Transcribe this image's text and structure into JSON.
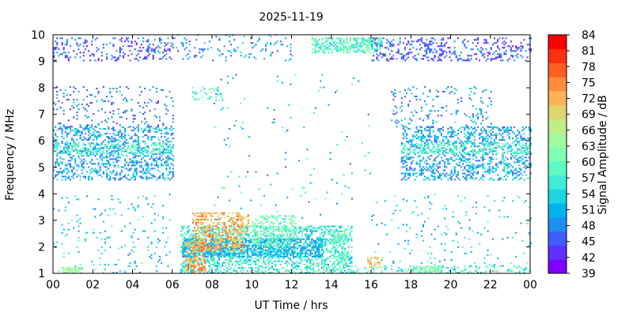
{
  "chart_data": {
    "type": "heatmap",
    "title": "2025-11-19",
    "xlabel": "UT Time / hrs",
    "ylabel": "Frequency / MHz",
    "colorbar_label": "Signal Amplitude / dB",
    "xlim": [
      0,
      24
    ],
    "ylim": [
      1,
      10
    ],
    "x_ticks": [
      "00",
      "02",
      "04",
      "06",
      "08",
      "10",
      "12",
      "14",
      "16",
      "18",
      "20",
      "22",
      "00"
    ],
    "y_ticks": [
      "1",
      "2",
      "3",
      "4",
      "5",
      "6",
      "7",
      "8",
      "9",
      "10"
    ],
    "colorbar_ticks": [
      "39",
      "42",
      "45",
      "48",
      "51",
      "54",
      "57",
      "60",
      "63",
      "66",
      "69",
      "72",
      "75",
      "78",
      "81",
      "84"
    ],
    "colorbar_range": [
      39,
      84
    ],
    "colorbar_colors": [
      "#7f00ff",
      "#5f30fe",
      "#3f5efb",
      "#1f8ef1",
      "#00b4eb",
      "#1fd3e0",
      "#41ecd4",
      "#5ffac4",
      "#80feb3",
      "#a1fa9e",
      "#c1ec87",
      "#dfd46e",
      "#ffb255",
      "#ff8e3c",
      "#ff5e21",
      "#ff3011",
      "#ff0000"
    ],
    "regions": [
      {
        "x": [
          0,
          6
        ],
        "y": [
          4.5,
          6.5
        ],
        "dB": 51,
        "spread": 6,
        "density": 0.35
      },
      {
        "x": [
          0,
          6
        ],
        "y": [
          5.5,
          5.9
        ],
        "dB": 60,
        "spread": 4,
        "density": 0.4
      },
      {
        "x": [
          0,
          6
        ],
        "y": [
          9,
          9.9
        ],
        "dB": 46,
        "spread": 5,
        "density": 0.2
      },
      {
        "x": [
          0,
          6
        ],
        "y": [
          6.5,
          8
        ],
        "dB": 48,
        "spread": 6,
        "density": 0.12
      },
      {
        "x": [
          0,
          6
        ],
        "y": [
          1,
          4
        ],
        "dB": 54,
        "spread": 6,
        "density": 0.05
      },
      {
        "x": [
          0.5,
          1.5
        ],
        "y": [
          1,
          1.2
        ],
        "dB": 66,
        "spread": 4,
        "density": 0.6
      },
      {
        "x": [
          6,
          12
        ],
        "y": [
          9,
          10
        ],
        "dB": 50,
        "spread": 6,
        "density": 0.1
      },
      {
        "x": [
          7,
          8.5
        ],
        "y": [
          7.5,
          8
        ],
        "dB": 60,
        "spread": 6,
        "density": 0.15
      },
      {
        "x": [
          13,
          16.5
        ],
        "y": [
          9.3,
          9.9
        ],
        "dB": 60,
        "spread": 6,
        "density": 0.55
      },
      {
        "x": [
          16,
          24
        ],
        "y": [
          9,
          9.9
        ],
        "dB": 46,
        "spread": 5,
        "density": 0.25
      },
      {
        "x": [
          17.5,
          24
        ],
        "y": [
          4.5,
          6.5
        ],
        "dB": 51,
        "spread": 6,
        "density": 0.35
      },
      {
        "x": [
          17.5,
          24
        ],
        "y": [
          5.5,
          5.9
        ],
        "dB": 60,
        "spread": 4,
        "density": 0.35
      },
      {
        "x": [
          17,
          22
        ],
        "y": [
          6.5,
          8
        ],
        "dB": 50,
        "spread": 6,
        "density": 0.12
      },
      {
        "x": [
          16,
          24
        ],
        "y": [
          1,
          4
        ],
        "dB": 54,
        "spread": 6,
        "density": 0.04
      },
      {
        "x": [
          15,
          24
        ],
        "y": [
          1,
          1.25
        ],
        "dB": 60,
        "spread": 6,
        "density": 0.25
      },
      {
        "x": [
          18,
          19.5
        ],
        "y": [
          1,
          1.3
        ],
        "dB": 63,
        "spread": 4,
        "density": 0.5
      },
      {
        "x": [
          6.4,
          15
        ],
        "y": [
          1,
          2.8
        ],
        "dB": 58,
        "spread": 6,
        "density": 0.45
      },
      {
        "x": [
          6.5,
          13.5
        ],
        "y": [
          1.6,
          2.3
        ],
        "dB": 52,
        "spread": 4,
        "density": 0.6
      },
      {
        "x": [
          7,
          9.5
        ],
        "y": [
          1.8,
          3.3
        ],
        "dB": 74,
        "spread": 6,
        "density": 0.5
      },
      {
        "x": [
          6.6,
          7.6
        ],
        "y": [
          1,
          2.2
        ],
        "dB": 76,
        "spread": 6,
        "density": 0.45
      },
      {
        "x": [
          10,
          12.2
        ],
        "y": [
          2,
          3.2
        ],
        "dB": 62,
        "spread": 5,
        "density": 0.35
      },
      {
        "x": [
          9.2,
          9.8
        ],
        "y": [
          2.5,
          3.2
        ],
        "dB": 74,
        "spread": 6,
        "density": 0.4
      },
      {
        "x": [
          14,
          14.8
        ],
        "y": [
          1.3,
          2.6
        ],
        "dB": 60,
        "spread": 5,
        "density": 0.4
      },
      {
        "x": [
          15.8,
          16.6
        ],
        "y": [
          1.2,
          1.6
        ],
        "dB": 72,
        "spread": 5,
        "density": 0.4
      },
      {
        "x": [
          8,
          16
        ],
        "y": [
          3,
          8.5
        ],
        "dB": 54,
        "spread": 8,
        "density": 0.015
      }
    ]
  }
}
